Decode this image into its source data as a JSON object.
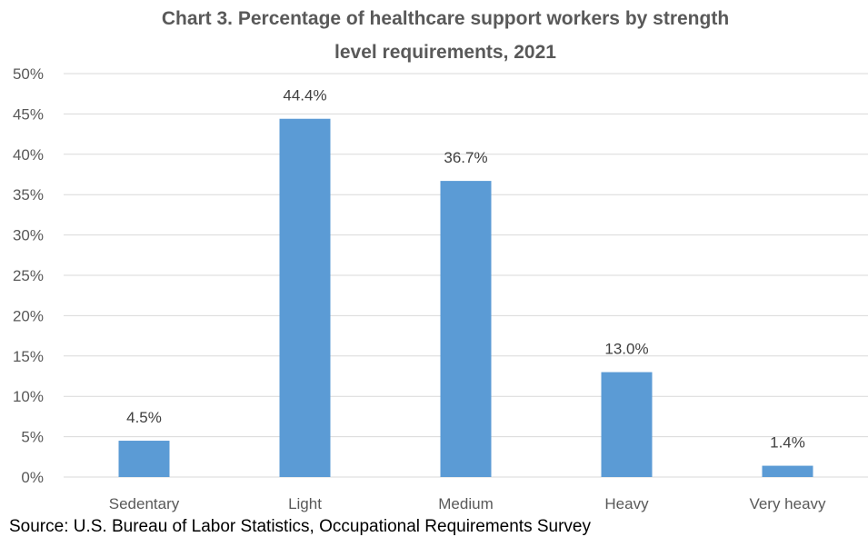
{
  "chart_data": {
    "type": "bar",
    "title_lines": [
      "Chart 3. Percentage of healthcare support workers by strength",
      "level requirements, 2021"
    ],
    "categories": [
      "Sedentary",
      "Light",
      "Medium",
      "Heavy",
      "Very heavy"
    ],
    "values": [
      4.5,
      44.4,
      36.7,
      13.0,
      1.4
    ],
    "data_labels": [
      "4.5%",
      "44.4%",
      "36.7%",
      "13.0%",
      "1.4%"
    ],
    "y_ticks": [
      "0%",
      "5%",
      "10%",
      "15%",
      "20%",
      "25%",
      "30%",
      "35%",
      "40%",
      "45%",
      "50%"
    ],
    "ylim": [
      0,
      50
    ],
    "xlabel": "",
    "ylabel": "",
    "grid": true,
    "legend": "none",
    "bar_color": "#5b9bd5",
    "source": "Source: U.S. Bureau of Labor Statistics, Occupational Requirements Survey"
  }
}
